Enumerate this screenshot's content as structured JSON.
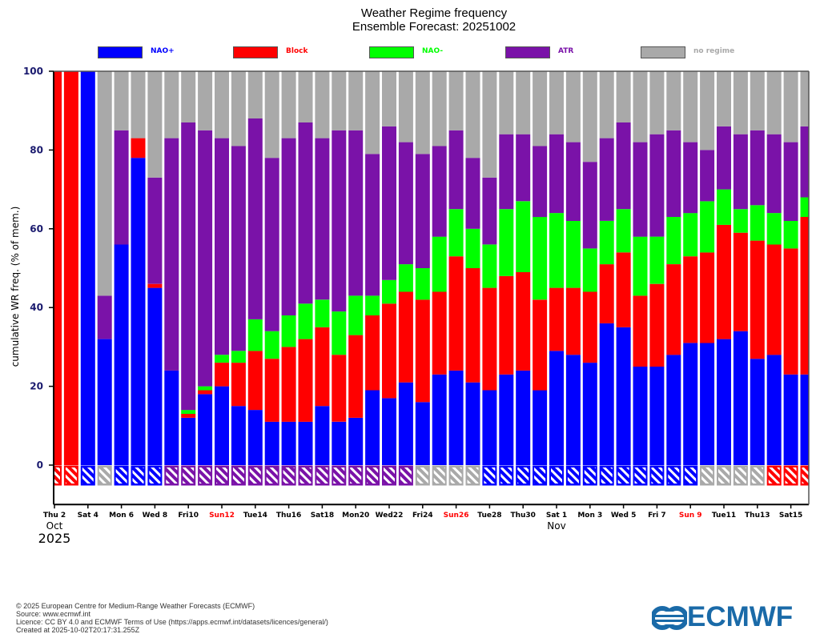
{
  "header": {
    "title": "Weather Regime frequency",
    "subtitle": "Ensemble Forecast: 20251002"
  },
  "legend": [
    {
      "label": "NAO+",
      "color": "#0000ff",
      "text_color": "#0000ff"
    },
    {
      "label": "Block",
      "color": "#ff0000",
      "text_color": "#ff0000"
    },
    {
      "label": "NAO-",
      "color": "#00ff00",
      "text_color": "#00ff00"
    },
    {
      "label": "ATR",
      "color": "#7a12a8",
      "text_color": "#7a12a8"
    },
    {
      "label": "no regime",
      "color": "#a9a9a9",
      "text_color": "#a9a9a9"
    }
  ],
  "chart_data": {
    "type": "bar",
    "stacked": true,
    "title": "Weather Regime frequency",
    "subtitle": "Ensemble Forecast: 20251002",
    "ylabel": "cumulative WR freq. (% of mem.)",
    "xlabel": "",
    "ylim": [
      -10,
      100
    ],
    "yticks": [
      0,
      20,
      40,
      60,
      80,
      100
    ],
    "xtick_labels": [
      {
        "label": "Thu 2",
        "day_index": 0,
        "red": false
      },
      {
        "label": "Sat 4",
        "day_index": 2,
        "red": false
      },
      {
        "label": "Mon 6",
        "day_index": 4,
        "red": false
      },
      {
        "label": "Wed 8",
        "day_index": 6,
        "red": false
      },
      {
        "label": "Fri10",
        "day_index": 8,
        "red": false
      },
      {
        "label": "Sun12",
        "day_index": 10,
        "red": true
      },
      {
        "label": "Tue14",
        "day_index": 12,
        "red": false
      },
      {
        "label": "Thu16",
        "day_index": 14,
        "red": false
      },
      {
        "label": "Sat18",
        "day_index": 16,
        "red": false
      },
      {
        "label": "Mon20",
        "day_index": 18,
        "red": false
      },
      {
        "label": "Wed22",
        "day_index": 20,
        "red": false
      },
      {
        "label": "Fri24",
        "day_index": 22,
        "red": false
      },
      {
        "label": "Sun26",
        "day_index": 24,
        "red": true
      },
      {
        "label": "Tue28",
        "day_index": 26,
        "red": false
      },
      {
        "label": "Thu30",
        "day_index": 28,
        "red": false
      },
      {
        "label": "Sat 1",
        "day_index": 30,
        "red": false
      },
      {
        "label": "Mon 3",
        "day_index": 32,
        "red": false
      },
      {
        "label": "Wed 5",
        "day_index": 34,
        "red": false
      },
      {
        "label": "Fri 7",
        "day_index": 36,
        "red": false
      },
      {
        "label": "Sun 9",
        "day_index": 38,
        "red": true
      },
      {
        "label": "Tue11",
        "day_index": 40,
        "red": false
      },
      {
        "label": "Thu13",
        "day_index": 42,
        "red": false
      },
      {
        "label": "Sat15",
        "day_index": 44,
        "red": false
      }
    ],
    "month_labels": [
      {
        "label": "Oct",
        "day_index": 0
      },
      {
        "label": "Nov",
        "day_index": 30
      }
    ],
    "year_label": "2025",
    "series_order": [
      "NAO+",
      "Block",
      "NAO-",
      "ATR",
      "no regime"
    ],
    "days": 46,
    "cumulative": {
      "NAO+": [
        0,
        0,
        100,
        32,
        56,
        78,
        45,
        24,
        12,
        18,
        20,
        15,
        14,
        11,
        11,
        11,
        15,
        11,
        12,
        19,
        17,
        21,
        16,
        23,
        24,
        21,
        19,
        23,
        24,
        19,
        29,
        28,
        26,
        36,
        35,
        25,
        25,
        28,
        31,
        31,
        32,
        34,
        27,
        28,
        23,
        23
      ],
      "Block": [
        100,
        100,
        100,
        32,
        56,
        83,
        46,
        24,
        13,
        19,
        26,
        26,
        29,
        27,
        30,
        32,
        35,
        28,
        33,
        38,
        41,
        44,
        42,
        44,
        53,
        50,
        45,
        48,
        49,
        42,
        45,
        45,
        44,
        51,
        54,
        43,
        46,
        51,
        53,
        54,
        61,
        59,
        57,
        56,
        55,
        63
      ],
      "NAO-": [
        100,
        100,
        100,
        32,
        56,
        83,
        46,
        24,
        14,
        20,
        28,
        29,
        37,
        34,
        38,
        41,
        42,
        39,
        43,
        43,
        47,
        51,
        50,
        58,
        65,
        60,
        56,
        65,
        67,
        63,
        64,
        62,
        55,
        62,
        65,
        58,
        58,
        63,
        64,
        67,
        70,
        65,
        66,
        64,
        62,
        68
      ],
      "ATR": [
        100,
        100,
        100,
        43,
        85,
        83,
        73,
        83,
        87,
        85,
        83,
        81,
        88,
        78,
        83,
        87,
        83,
        85,
        85,
        79,
        86,
        82,
        79,
        81,
        85,
        78,
        73,
        84,
        84,
        81,
        84,
        82,
        77,
        83,
        87,
        82,
        84,
        85,
        82,
        80,
        86,
        84,
        85,
        84,
        82,
        86
      ],
      "no regime": [
        100,
        100,
        100,
        100,
        100,
        100,
        100,
        100,
        100,
        100,
        100,
        100,
        100,
        100,
        100,
        100,
        100,
        100,
        100,
        100,
        100,
        100,
        100,
        100,
        100,
        100,
        100,
        100,
        100,
        100,
        100,
        100,
        100,
        100,
        100,
        100,
        100,
        100,
        100,
        100,
        100,
        100,
        100,
        100,
        100,
        100
      ]
    },
    "dominant_regime": [
      "Block",
      "Block",
      "NAO+",
      "no regime",
      "NAO+",
      "NAO+",
      "NAO+",
      "ATR",
      "ATR",
      "ATR",
      "ATR",
      "ATR",
      "ATR",
      "ATR",
      "ATR",
      "ATR",
      "ATR",
      "ATR",
      "ATR",
      "ATR",
      "ATR",
      "ATR",
      "no regime",
      "no regime",
      "no regime",
      "no regime",
      "NAO+",
      "NAO+",
      "NAO+",
      "NAO+",
      "NAO+",
      "NAO+",
      "NAO+",
      "NAO+",
      "NAO+",
      "NAO+",
      "NAO+",
      "NAO+",
      "NAO+",
      "no regime",
      "no regime",
      "no regime",
      "no regime",
      "Block",
      "Block",
      "Block"
    ],
    "legend_position": "top"
  },
  "footer": {
    "lines": [
      "© 2025 European Centre for Medium-Range Weather Forecasts (ECMWF)",
      "Source: www.ecmwf.int",
      "Licence: CC BY 4.0 and ECMWF Terms of Use (https://apps.ecmwf.int/datasets/licences/general/)",
      "Created at 2025-10-02T20:17:31.255Z"
    ],
    "logo_text": "ECMWF"
  }
}
